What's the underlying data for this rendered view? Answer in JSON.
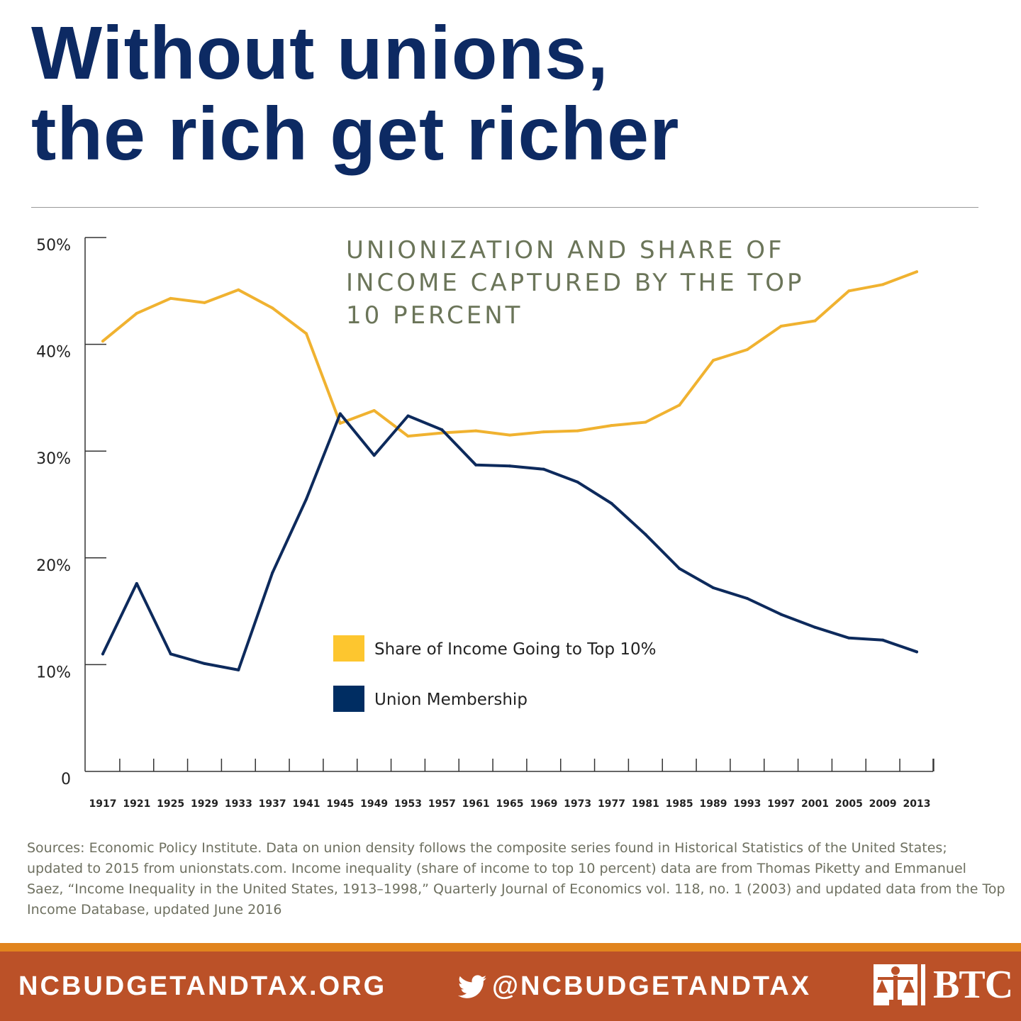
{
  "headline": "Without unions, the rich get richer",
  "sources_text": "Sources: Economic Policy Institute. Data on union density follows the composite series found in Historical Statistics of the United States; updated to 2015 from unionstats.com. Income inequality (share of income to top 10 percent) data are from Thomas Piketty and Emmanuel Saez, “Income Inequality in the United States, 1913–1998,” Quarterly Journal of Economics vol. 118, no. 1 (2003) and updated data from the Top Income Database, updated June 2016",
  "footer": {
    "website": "NCBUDGETANDTAX.ORG",
    "twitter": "@NCBUDGETANDTAX",
    "logo_text": "BTC"
  },
  "colors": {
    "headline": "#0d2a63",
    "income_series": "#f0b230",
    "union_series": "#0d2a5c",
    "chart_title": "#6b7559",
    "footer_bg": "#bb5128",
    "footer_stripe": "#e1841e"
  },
  "chart_data": {
    "type": "line",
    "title": "UNIONIZATION AND SHARE OF INCOME CAPTURED BY THE TOP 10 PERCENT",
    "x": [
      1917,
      1921,
      1925,
      1929,
      1933,
      1937,
      1941,
      1945,
      1949,
      1953,
      1957,
      1961,
      1965,
      1969,
      1973,
      1977,
      1981,
      1985,
      1989,
      1993,
      1997,
      2001,
      2005,
      2009,
      2013
    ],
    "x_tick_labels": [
      "1917",
      "1921",
      "1925",
      "1929",
      "1933",
      "1937",
      "1941",
      "1945",
      "1949",
      "1953",
      "1957",
      "1961",
      "1965",
      "1969",
      "1973",
      "1977",
      "1981",
      "1985",
      "1989",
      "1993",
      "1997",
      "2001",
      "2005",
      "2009",
      "2013"
    ],
    "y_tick_labels": [
      "0",
      "10%",
      "20%",
      "30%",
      "40%",
      "50%"
    ],
    "y_ticks": [
      0,
      10,
      20,
      30,
      40,
      50
    ],
    "ylim": [
      0,
      50
    ],
    "series": [
      {
        "name": "Share of Income Going to Top 10%",
        "color": "#f0b230",
        "values": [
          40.3,
          42.9,
          44.3,
          43.9,
          45.1,
          43.4,
          41.0,
          32.6,
          33.8,
          31.4,
          31.7,
          31.9,
          31.5,
          31.8,
          31.9,
          32.4,
          32.7,
          34.3,
          38.5,
          39.5,
          41.7,
          42.2,
          45.0,
          45.6,
          46.8
        ]
      },
      {
        "name": "Union Membership",
        "color": "#0d2a5c",
        "values": [
          11.0,
          17.6,
          11.0,
          10.1,
          9.5,
          18.6,
          25.5,
          33.5,
          29.6,
          33.3,
          32.0,
          28.7,
          28.6,
          28.3,
          27.1,
          25.1,
          22.2,
          19.0,
          17.2,
          16.2,
          14.7,
          13.5,
          12.5,
          12.3,
          11.2
        ]
      }
    ],
    "legend_position": "center",
    "grid": false
  }
}
